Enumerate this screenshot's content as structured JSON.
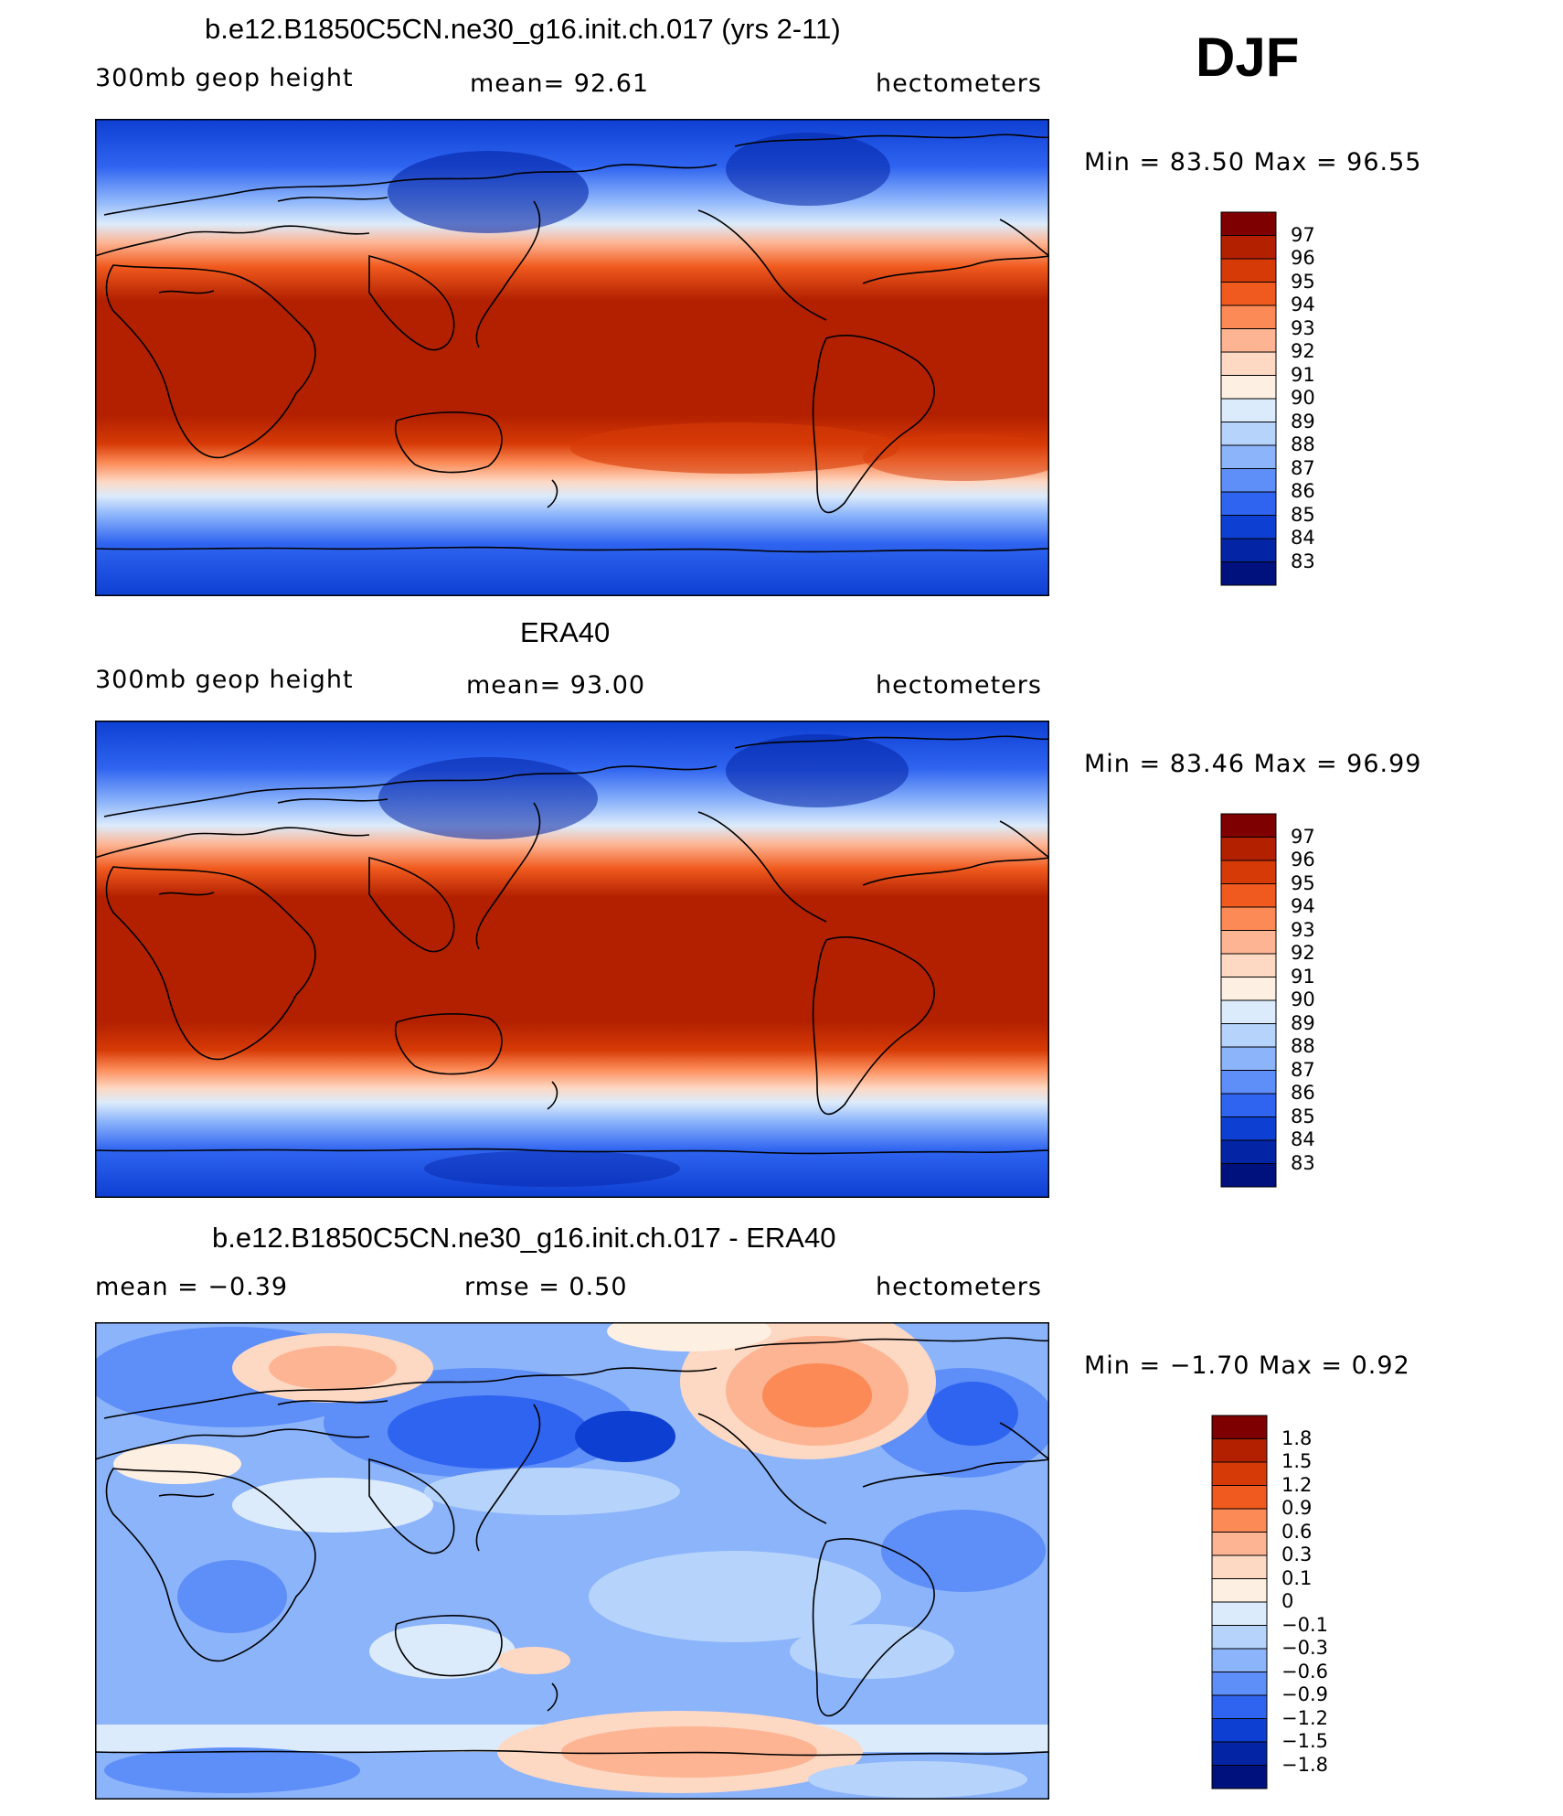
{
  "season": "DJF",
  "panels": [
    {
      "title": "b.e12.B1850C5CN.ne30_g16.init.ch.017 (yrs 2-11)",
      "left": "300mb geop height",
      "center": "mean=  92.61",
      "right": "hectometers",
      "minmax": "Min =   83.50 Max =   96.55",
      "levels": [
        "97",
        "96",
        "95",
        "94",
        "93",
        "92",
        "91",
        "90",
        "89",
        "88",
        "87",
        "86",
        "85",
        "84",
        "83"
      ],
      "colors": [
        "#7f0000",
        "#b22000",
        "#d63a06",
        "#f05a1e",
        "#fc8a56",
        "#fdb493",
        "#fdd8c3",
        "#fdefe2",
        "#dcebfb",
        "#b6d3fb",
        "#8cb4fb",
        "#5e8ef8",
        "#2f64f0",
        "#0d3fd2",
        "#0424a6",
        "#00117e"
      ]
    },
    {
      "title": "ERA40",
      "left": "300mb geop height",
      "center": "mean=  93.00",
      "right": "hectometers",
      "minmax": "Min =   83.46 Max =   96.99",
      "levels": [
        "97",
        "96",
        "95",
        "94",
        "93",
        "92",
        "91",
        "90",
        "89",
        "88",
        "87",
        "86",
        "85",
        "84",
        "83"
      ],
      "colors": [
        "#7f0000",
        "#b22000",
        "#d63a06",
        "#f05a1e",
        "#fc8a56",
        "#fdb493",
        "#fdd8c3",
        "#fdefe2",
        "#dcebfb",
        "#b6d3fb",
        "#8cb4fb",
        "#5e8ef8",
        "#2f64f0",
        "#0d3fd2",
        "#0424a6",
        "#00117e"
      ]
    },
    {
      "title": "b.e12.B1850C5CN.ne30_g16.init.ch.017 - ERA40",
      "left": "mean =   −0.39",
      "center": "rmse =    0.50",
      "right": "hectometers",
      "minmax": "Min =  −1.70 Max =    0.92",
      "levels": [
        "1.8",
        "1.5",
        "1.2",
        "0.9",
        "0.6",
        "0.3",
        "0.1",
        "0",
        "−0.1",
        "−0.3",
        "−0.6",
        "−0.9",
        "−1.2",
        "−1.5",
        "−1.8"
      ],
      "colors": [
        "#7f0000",
        "#b22000",
        "#d63a06",
        "#f05a1e",
        "#fc8a56",
        "#fdb493",
        "#fdd8c3",
        "#fdefe2",
        "#dcebfb",
        "#b6d3fb",
        "#8cb4fb",
        "#5e8ef8",
        "#2f64f0",
        "#0d3fd2",
        "#0424a6",
        "#00117e"
      ]
    }
  ]
}
